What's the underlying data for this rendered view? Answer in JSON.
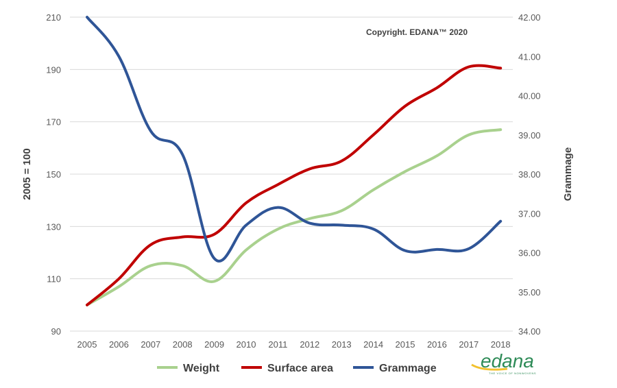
{
  "chart_data": {
    "type": "line",
    "x": [
      "2005",
      "2006",
      "2007",
      "2008",
      "2009",
      "2010",
      "2011",
      "2012",
      "2013",
      "2014",
      "2015",
      "2016",
      "2017",
      "2018"
    ],
    "series": [
      {
        "name": "Weight",
        "axis": "left",
        "color": "#a9d18e",
        "values": [
          100,
          107,
          115,
          115,
          109,
          121,
          129,
          133,
          136,
          144,
          151,
          157,
          165,
          167
        ]
      },
      {
        "name": "Surface area",
        "axis": "left",
        "color": "#c00000",
        "values": [
          100,
          110,
          123,
          126,
          127,
          139,
          146,
          152,
          155,
          165,
          176,
          183,
          191,
          190.5
        ]
      },
      {
        "name": "Grammage",
        "axis": "right",
        "color": "#2f5597",
        "values": [
          42.0,
          41.0,
          39.1,
          38.5,
          35.85,
          36.7,
          37.15,
          36.75,
          36.7,
          36.6,
          36.05,
          36.08,
          36.1,
          36.8
        ]
      }
    ],
    "ylabel": "2005 = 100",
    "y2label": "Grammage",
    "ylim": [
      90,
      210
    ],
    "yticks": [
      "90",
      "110",
      "130",
      "150",
      "170",
      "190",
      "210"
    ],
    "y2lim": [
      34.0,
      42.0
    ],
    "y2ticks": [
      "34.00",
      "35.00",
      "36.00",
      "37.00",
      "38.00",
      "39.00",
      "40.00",
      "41.00",
      "42.00"
    ],
    "grid": true,
    "legend_position": "bottom",
    "annotation": "Copyright. EDANA™ 2020"
  },
  "logo": {
    "text": "edana",
    "tagline": "THE VOICE OF NONWOVENS"
  }
}
